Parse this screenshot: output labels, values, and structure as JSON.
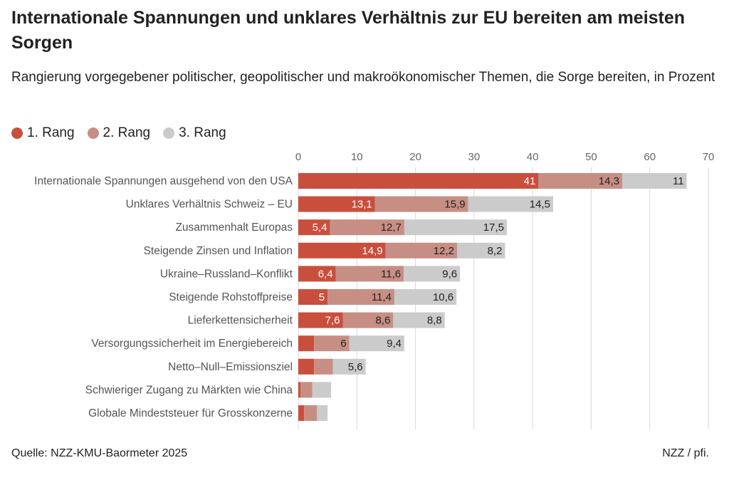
{
  "title": "Internationale Spannungen und unklares Verhältnis zur EU bereiten am meisten Sorgen",
  "subtitle": "Rangierung vorgegebener politischer, geopolitischer und makroökonomischer Themen, die Sorge bereiten, in Prozent",
  "legend": [
    {
      "label": "1. Rang",
      "color": "#c94f3d"
    },
    {
      "label": "2. Rang",
      "color": "#c78e84"
    },
    {
      "label": "3. Rang",
      "color": "#cbcbcb"
    }
  ],
  "footer": {
    "source": "Quelle: NZZ-KMU-Baormeter 2025",
    "credit": "NZZ / pfi."
  },
  "chart_data": {
    "type": "bar",
    "orientation": "horizontal",
    "stacked": true,
    "xlim": [
      0,
      70
    ],
    "xticks": [
      0,
      10,
      20,
      30,
      40,
      50,
      60,
      70
    ],
    "grid": true,
    "legend_position": "top-left",
    "categories": [
      "Internationale Spannungen ausgehend von den USA",
      "Unklares Verhältnis Schweiz – EU",
      "Zusammenhalt Europas",
      "Steigende Zinsen und Inflation",
      "Ukraine–Russland–Konflikt",
      "Steigende Rohstoffpreise",
      "Lieferkettensicherheit",
      "Versorgungssicherheit im Energiebereich",
      "Netto–Null–Emissionsziel",
      "Schwieriger Zugang zu Märkten wie China",
      "Globale Mindeststeuer für Grosskonzerne"
    ],
    "series": [
      {
        "name": "1. Rang",
        "color": "#c94f3d",
        "label_color": "#ffffff",
        "values": [
          41,
          13.1,
          5.4,
          14.9,
          6.4,
          5,
          7.6,
          2.7,
          2.7,
          0.4,
          1.0
        ],
        "labels": [
          "41",
          "13,1",
          "5,4",
          "14,9",
          "6,4",
          "5",
          "7,6",
          "",
          "",
          "",
          ""
        ]
      },
      {
        "name": "2. Rang",
        "color": "#c78e84",
        "label_color": "#222222",
        "values": [
          14.3,
          15.9,
          12.7,
          12.2,
          11.6,
          11.4,
          8.6,
          6,
          3.2,
          2.0,
          2.2
        ],
        "labels": [
          "14,3",
          "15,9",
          "12,7",
          "12,2",
          "11,6",
          "11,4",
          "8,6",
          "6",
          "",
          "",
          ""
        ]
      },
      {
        "name": "3. Rang",
        "color": "#cbcbcb",
        "label_color": "#222222",
        "values": [
          11,
          14.5,
          17.5,
          8.2,
          9.6,
          10.6,
          8.8,
          9.4,
          5.6,
          3.2,
          1.8
        ],
        "labels": [
          "11",
          "14,5",
          "17,5",
          "8,2",
          "9,6",
          "10,6",
          "8,8",
          "9,4",
          "5,6",
          "",
          ""
        ]
      }
    ]
  }
}
